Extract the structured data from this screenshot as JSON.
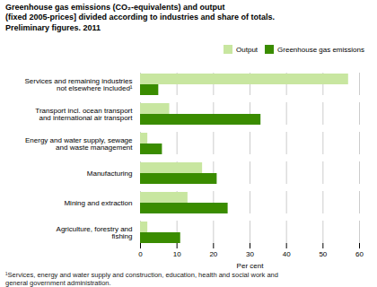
{
  "chart_data": {
    "type": "bar",
    "orientation": "horizontal",
    "title": "Greenhouse gas emissions (CO₂-equivalents) and output\n(fixed 2005-prices] divided according to industries and share of totals.\nPreliminary figures. 2011",
    "categories": [
      "Agriculture, forestry and\nfishing",
      "Mining and extraction",
      "Manufacturing",
      "Energy and water supply, sewage\nand waste management",
      "Transport incl. ocean transport\nand international air transport",
      "Services and remaining industries\nnot elsewhere included¹"
    ],
    "series": [
      {
        "name": "Output",
        "color": "#c8e6a0",
        "values": [
          2,
          13,
          17,
          2,
          8,
          57
        ]
      },
      {
        "name": "Greenhouse gas emissions",
        "color": "#3a8c00",
        "values": [
          11,
          24,
          21,
          6,
          33,
          5
        ]
      }
    ],
    "xlabel": "Per cent",
    "xlim": [
      0,
      60
    ],
    "xticks": [
      0,
      10,
      20,
      30,
      40,
      50,
      60
    ],
    "grid": true,
    "legend": "upper right",
    "footnote": "¹Services, energy and water supply and construction, education, health and social work and\ngeneral government administration."
  }
}
